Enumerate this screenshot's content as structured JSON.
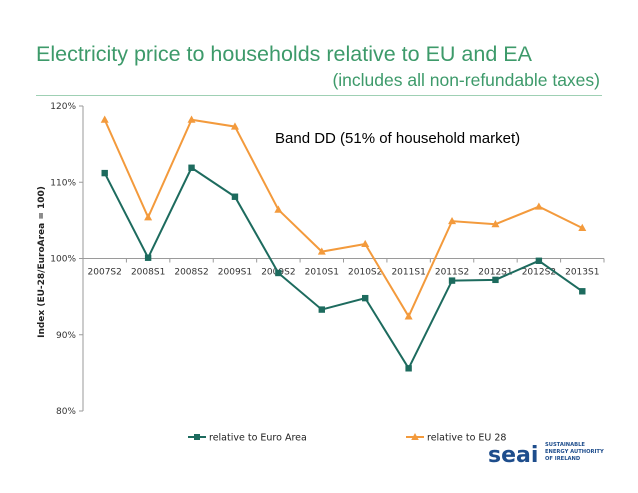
{
  "slide": {
    "title": "Electricity price to households relative to EU and EA",
    "subtitle": "(includes all non-refundable taxes)"
  },
  "logo": {
    "word": "seai",
    "lines": [
      "SUSTAINABLE",
      "ENERGY AUTHORITY",
      "OF IRELAND"
    ]
  },
  "colors": {
    "euro_area": "#1d6b5e",
    "eu28": "#f39a3c",
    "title": "#3d9a6a",
    "logo": "#1e4d8c"
  },
  "chart_data": {
    "type": "line",
    "title": "",
    "annotation": "Band DD (51% of household market)",
    "ylabel": "Index (EU-28/EuroArea = 100)",
    "xlabel": "",
    "ylim": [
      80,
      120
    ],
    "yticks": [
      "120%",
      "110%",
      "100%",
      "90%",
      "80%"
    ],
    "categories": [
      "2007S2",
      "2008S1",
      "2008S2",
      "2009S1",
      "2009S2",
      "2010S1",
      "2010S2",
      "2011S1",
      "2011S2",
      "2012S1",
      "2012S2",
      "2013S1"
    ],
    "series": [
      {
        "name": "relative to Euro Area",
        "color": "#1d6b5e",
        "marker": "square",
        "values": [
          111.2,
          100.1,
          111.9,
          108.1,
          98.1,
          93.3,
          94.8,
          85.6,
          97.1,
          97.2,
          99.7,
          95.7
        ]
      },
      {
        "name": "relative to EU 28",
        "color": "#f39a3c",
        "marker": "triangle",
        "values": [
          118.2,
          105.4,
          118.2,
          117.3,
          106.4,
          100.9,
          101.9,
          92.4,
          104.9,
          104.5,
          106.8,
          104.0
        ]
      }
    ],
    "grid": false,
    "legend": "bottom"
  }
}
